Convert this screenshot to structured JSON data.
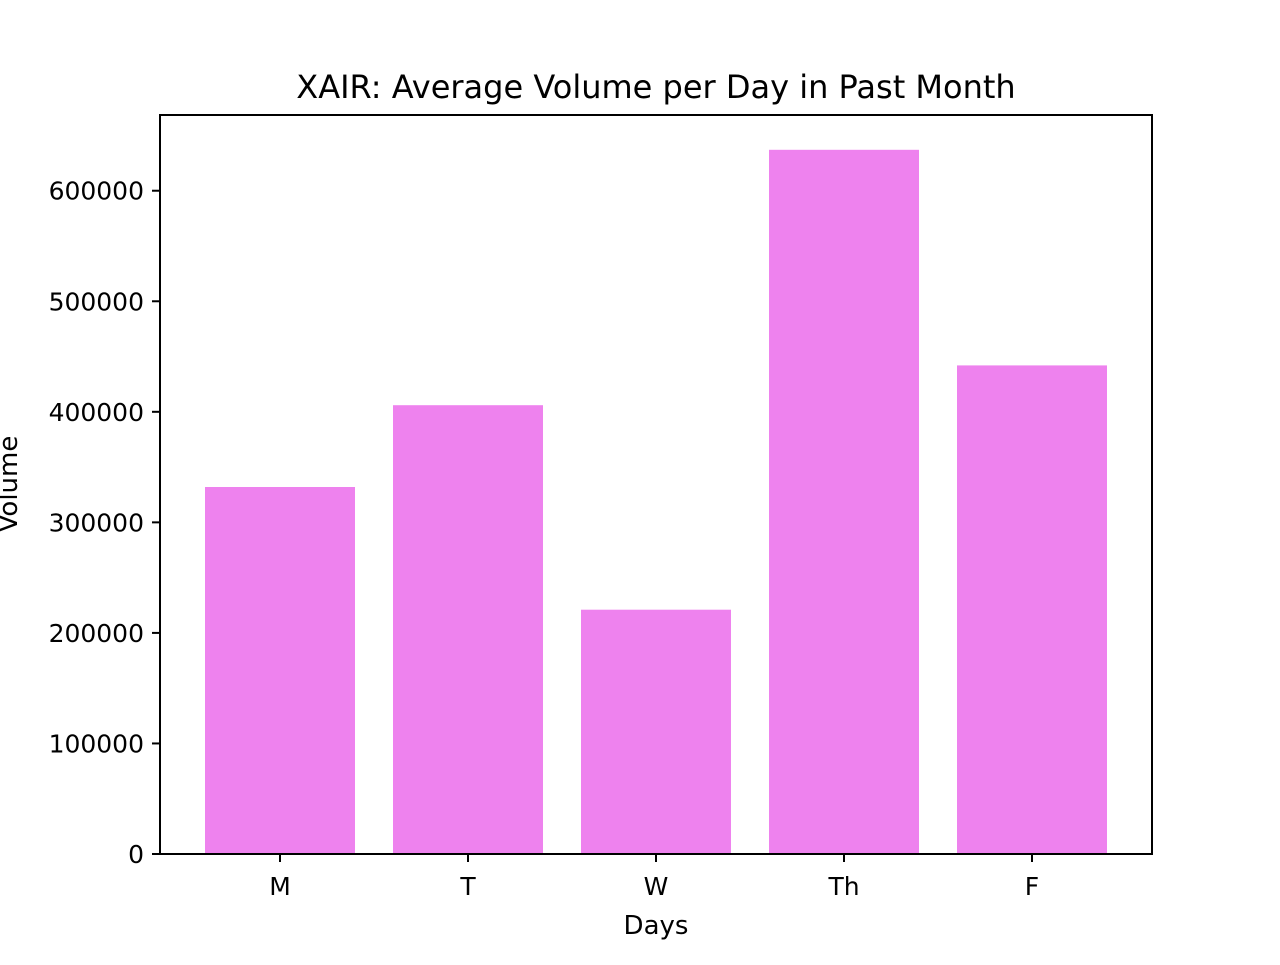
{
  "chart_data": {
    "type": "bar",
    "title": "XAIR: Average Volume per Day in Past Month",
    "xlabel": "Days",
    "ylabel": "Volume",
    "categories": [
      "M",
      "T",
      "W",
      "Th",
      "F"
    ],
    "values": [
      332000,
      406000,
      221000,
      637000,
      442000
    ],
    "ylim": [
      0,
      668500
    ],
    "yticks": [
      0,
      100000,
      200000,
      300000,
      400000,
      500000,
      600000
    ],
    "ytick_labels": [
      "0",
      "100000",
      "200000",
      "300000",
      "400000",
      "500000",
      "600000"
    ],
    "bar_color": "#EE82EE",
    "grid": false,
    "legend": "none"
  }
}
